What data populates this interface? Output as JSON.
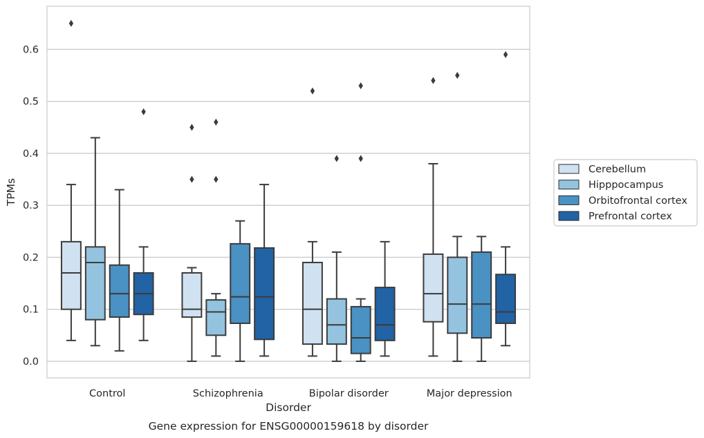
{
  "chart_data": {
    "type": "boxplot",
    "title": "",
    "caption": "Gene expression for ENSG00000159618 by disorder",
    "xlabel": "Disorder",
    "ylabel": "TPMs",
    "ylim": [
      -0.032,
      0.683
    ],
    "yticks": [
      0.0,
      0.1,
      0.2,
      0.3,
      0.4,
      0.5,
      0.6
    ],
    "ytick_labels": [
      "0.0",
      "0.1",
      "0.2",
      "0.3",
      "0.4",
      "0.5",
      "0.6"
    ],
    "categories": [
      "Control",
      "Schizophrenia",
      "Bipolar disorder",
      "Major depression"
    ],
    "grid": "horizontal",
    "legend_position": "right",
    "series": [
      {
        "name": "Cerebellum",
        "color": "#d0e1f1",
        "boxes": [
          {
            "whislo": 0.04,
            "q1": 0.1,
            "med": 0.17,
            "q3": 0.23,
            "whishi": 0.34,
            "fliers": [
              0.65
            ]
          },
          {
            "whislo": 0.0,
            "q1": 0.085,
            "med": 0.1,
            "q3": 0.17,
            "whishi": 0.18,
            "fliers": [
              0.35,
              0.45
            ]
          },
          {
            "whislo": 0.01,
            "q1": 0.033,
            "med": 0.1,
            "q3": 0.19,
            "whishi": 0.23,
            "fliers": [
              0.52
            ]
          },
          {
            "whislo": 0.01,
            "q1": 0.076,
            "med": 0.13,
            "q3": 0.206,
            "whishi": 0.38,
            "fliers": [
              0.54
            ]
          }
        ]
      },
      {
        "name": "Hipppocampus",
        "color": "#93c3df",
        "boxes": [
          {
            "whislo": 0.03,
            "q1": 0.08,
            "med": 0.19,
            "q3": 0.22,
            "whishi": 0.43,
            "fliers": []
          },
          {
            "whislo": 0.01,
            "q1": 0.05,
            "med": 0.095,
            "q3": 0.118,
            "whishi": 0.13,
            "fliers": [
              0.35,
              0.46
            ]
          },
          {
            "whislo": 0.0,
            "q1": 0.033,
            "med": 0.07,
            "q3": 0.12,
            "whishi": 0.21,
            "fliers": [
              0.39
            ]
          },
          {
            "whislo": 0.0,
            "q1": 0.054,
            "med": 0.11,
            "q3": 0.2,
            "whishi": 0.24,
            "fliers": [
              0.55
            ]
          }
        ]
      },
      {
        "name": "Orbitofrontal cortex",
        "color": "#4a91c4",
        "boxes": [
          {
            "whislo": 0.02,
            "q1": 0.085,
            "med": 0.13,
            "q3": 0.185,
            "whishi": 0.33,
            "fliers": []
          },
          {
            "whislo": 0.0,
            "q1": 0.073,
            "med": 0.124,
            "q3": 0.226,
            "whishi": 0.27,
            "fliers": []
          },
          {
            "whislo": 0.0,
            "q1": 0.015,
            "med": 0.045,
            "q3": 0.105,
            "whishi": 0.12,
            "fliers": [
              0.39,
              0.53
            ]
          },
          {
            "whislo": 0.0,
            "q1": 0.045,
            "med": 0.11,
            "q3": 0.21,
            "whishi": 0.24,
            "fliers": []
          }
        ]
      },
      {
        "name": "Prefrontal cortex",
        "color": "#2163a5",
        "boxes": [
          {
            "whislo": 0.04,
            "q1": 0.09,
            "med": 0.13,
            "q3": 0.17,
            "whishi": 0.22,
            "fliers": [
              0.48
            ]
          },
          {
            "whislo": 0.01,
            "q1": 0.042,
            "med": 0.124,
            "q3": 0.218,
            "whishi": 0.34,
            "fliers": []
          },
          {
            "whislo": 0.01,
            "q1": 0.04,
            "med": 0.07,
            "q3": 0.142,
            "whishi": 0.23,
            "fliers": []
          },
          {
            "whislo": 0.03,
            "q1": 0.073,
            "med": 0.095,
            "q3": 0.167,
            "whishi": 0.22,
            "fliers": [
              0.59
            ]
          }
        ]
      }
    ]
  }
}
